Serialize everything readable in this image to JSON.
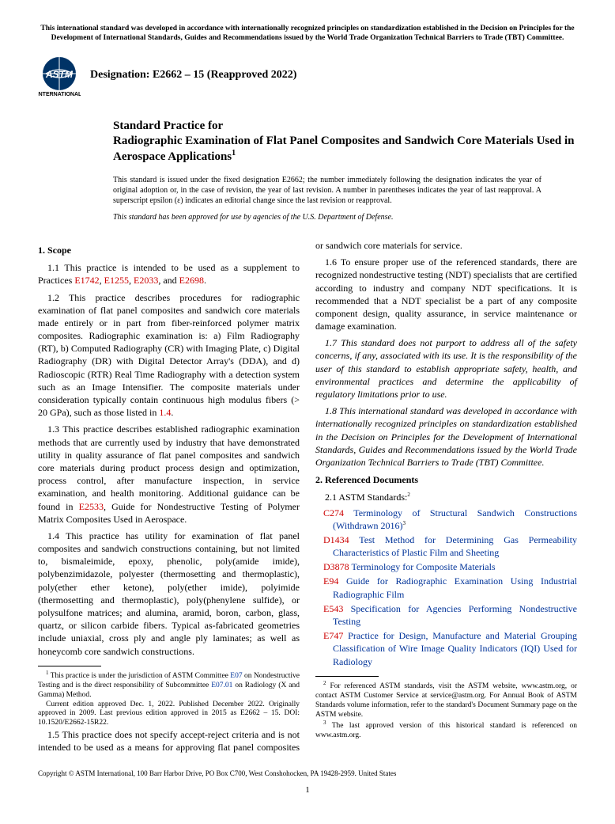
{
  "top_notice": "This international standard was developed in accordance with internationally recognized principles on standardization established in the Decision on Principles for the Development of International Standards, Guides and Recommendations issued by the World Trade Organization Technical Barriers to Trade (TBT) Committee.",
  "designation": "Designation: E2662 – 15 (Reapproved 2022)",
  "logo": {
    "text_line1": "ASTM",
    "text_line2": "INTERNATIONAL"
  },
  "title": {
    "line1": "Standard Practice for",
    "line2": "Radiographic Examination of Flat Panel Composites and Sandwich Core Materials Used in Aerospace Applications",
    "sup": "1"
  },
  "issuance": "This standard is issued under the fixed designation E2662; the number immediately following the designation indicates the year of original adoption or, in the case of revision, the year of last revision. A number in parentheses indicates the year of last reapproval. A superscript epsilon (ε) indicates an editorial change since the last revision or reapproval.",
  "dod": "This standard has been approved for use by agencies of the U.S. Department of Defense.",
  "scope_title": "1. Scope",
  "p11_a": "1.1 This practice is intended to be used as a supplement to Practices ",
  "p11_links": {
    "l1": "E1742",
    "l2": "E1255",
    "l3": "E2033",
    "l4": "E2698"
  },
  "p11_b": ", ",
  "p11_c": ", ",
  "p11_d": ", and ",
  "p11_e": ".",
  "p12": "1.2 This practice describes procedures for radiographic examination of flat panel composites and sandwich core materials made entirely or in part from fiber-reinforced polymer matrix composites. Radiographic examination is: a) Film Radiography (RT), b) Computed Radiography (CR) with Imaging Plate, c) Digital Radiography (DR) with Digital Detector Array's (DDA), and d) Radioscopic (RTR) Real Time Radiography with a detection system such as an Image Intensifier. The composite materials under consideration typically contain continuous high modulus fibers (> 20 GPa), such as those listed in ",
  "p12_link": "1.4",
  "p12_end": ".",
  "p13_a": "1.3 This practice describes established radiographic examination methods that are currently used by industry that have demonstrated utility in quality assurance of flat panel composites and sandwich core materials during product process design and optimization, process control, after manufacture inspection, in service examination, and health monitoring. Additional guidance can be found in ",
  "p13_link": "E2533",
  "p13_b": ", Guide for Nondestructive Testing of Polymer Matrix Composites Used in Aerospace.",
  "p14": "1.4 This practice has utility for examination of flat panel composites and sandwich constructions containing, but not limited to, bismaleimide, epoxy, phenolic, poly(amide imide), polybenzimidazole, polyester (thermosetting and thermoplastic), poly(ether ether ketone), poly(ether imide), polyimide (thermosetting and thermoplastic), poly(phenylene sulfide), or polysulfone matrices; and alumina, aramid, boron, carbon, glass, quartz, or silicon carbide fibers. Typical as-fabricated geometries include uniaxial, cross ply and angle ply laminates; as well as honeycomb core sandwich constructions.",
  "p15": "1.5 This practice does not specify accept-reject criteria and is not intended to be used as a means for approving flat panel composites or sandwich core materials for service.",
  "p16": "1.6 To ensure proper use of the referenced standards, there are recognized nondestructive testing (NDT) specialists that are certified according to industry and company NDT specifications. It is recommended that a NDT specialist be a part of any composite component design, quality assurance, in service maintenance or damage examination.",
  "p17": "1.7 This standard does not purport to address all of the safety concerns, if any, associated with its use. It is the responsibility of the user of this standard to establish appropriate safety, health, and environmental practices and determine the applicability of regulatory limitations prior to use.",
  "p18": "1.8 This international standard was developed in accordance with internationally recognized principles on standardization established in the Decision on Principles for the Development of International Standards, Guides and Recommendations issued by the World Trade Organization Technical Barriers to Trade (TBT) Committee.",
  "ref_title": "2. Referenced Documents",
  "ref_sub": "2.1 ASTM Standards:",
  "ref_sub_sup": "2",
  "refs": [
    {
      "code": "C274",
      "text": " Terminology of Structural Sandwich Constructions (Withdrawn 2016)",
      "sup": "3"
    },
    {
      "code": "D1434",
      "text": " Test Method for Determining Gas Permeability Characteristics of Plastic Film and Sheeting",
      "sup": ""
    },
    {
      "code": "D3878",
      "text": " Terminology for Composite Materials",
      "sup": ""
    },
    {
      "code": "E94",
      "text": " Guide for Radiographic Examination Using Industrial Radiographic Film",
      "sup": ""
    },
    {
      "code": "E543",
      "text": " Specification for Agencies Performing Nondestructive Testing",
      "sup": ""
    },
    {
      "code": "E747",
      "text": " Practice for Design, Manufacture and Material Grouping Classification of Wire Image Quality Indicators (IQI) Used for Radiology",
      "sup": ""
    }
  ],
  "fn1_a": "This practice is under the jurisdiction of ASTM Committee ",
  "fn1_link1": "E07",
  "fn1_b": " on Nondestructive Testing and is the direct responsibility of Subcommittee ",
  "fn1_link2": "E07.01",
  "fn1_c": " on Radiology (X and Gamma) Method.",
  "fn1_d": "Current edition approved Dec. 1, 2022. Published December 2022. Originally approved in 2009. Last previous edition approved in 2015 as E2662 – 15. DOI: 10.1520/E2662-15R22.",
  "fn2": "For referenced ASTM standards, visit the ASTM website, www.astm.org, or contact ASTM Customer Service at service@astm.org. For Annual Book of ASTM Standards volume information, refer to the standard's Document Summary page on the ASTM website.",
  "fn3": "The last approved version of this historical standard is referenced on www.astm.org.",
  "copyright": "Copyright © ASTM International, 100 Barr Harbor Drive, PO Box C700, West Conshohocken, PA 19428-2959. United States",
  "page_num": "1",
  "colors": {
    "link": "#003399",
    "red": "#cc0000",
    "text": "#000000",
    "bg": "#ffffff"
  }
}
